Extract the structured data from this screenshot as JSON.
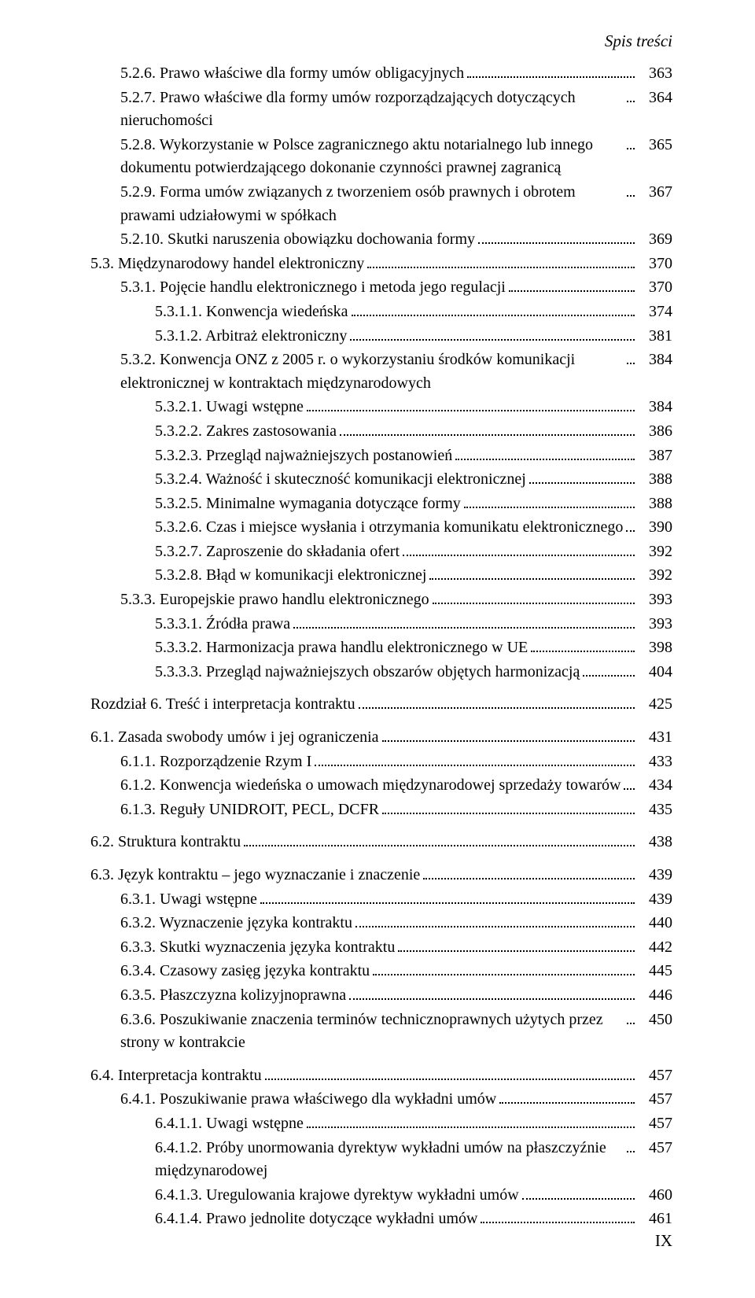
{
  "header": "Spis treści",
  "footer": "IX",
  "lines": [
    {
      "indent": 1,
      "num": "5.2.6.",
      "text": "Prawo właściwe dla formy umów obligacyjnych",
      "page": "363",
      "gap": false
    },
    {
      "indent": 1,
      "num": "5.2.7.",
      "text": "Prawo właściwe dla formy umów rozporządzających dotyczących nieruchomości",
      "page": "364",
      "gap": false
    },
    {
      "indent": 1,
      "num": "5.2.8.",
      "text": "Wykorzystanie w Polsce zagranicznego aktu notarialnego lub innego dokumentu potwierdzającego dokonanie czynności prawnej zagranicą",
      "page": "365",
      "gap": false
    },
    {
      "indent": 1,
      "num": "5.2.9.",
      "text": "Forma umów związanych z tworzeniem osób prawnych i obrotem prawami udziałowymi w spółkach",
      "page": "367",
      "gap": false
    },
    {
      "indent": 1,
      "num": "5.2.10.",
      "text": "Skutki naruszenia obowiązku dochowania formy",
      "page": "369",
      "gap": false
    },
    {
      "indent": 0,
      "num": "5.3.",
      "text": "Międzynarodowy handel elektroniczny",
      "page": "370",
      "gap": false
    },
    {
      "indent": 1,
      "num": "5.3.1.",
      "text": "Pojęcie handlu elektronicznego i metoda jego regulacji",
      "page": "370",
      "gap": false
    },
    {
      "indent": 2,
      "num": "5.3.1.1.",
      "text": "Konwencja wiedeńska",
      "page": "374",
      "gap": false
    },
    {
      "indent": 2,
      "num": "5.3.1.2.",
      "text": "Arbitraż elektroniczny",
      "page": "381",
      "gap": false
    },
    {
      "indent": 1,
      "num": "5.3.2.",
      "text": "Konwencja ONZ z 2005 r. o wykorzystaniu środków komunikacji elektronicznej w kontraktach międzynarodowych",
      "page": "384",
      "gap": false
    },
    {
      "indent": 2,
      "num": "5.3.2.1.",
      "text": "Uwagi wstępne",
      "page": "384",
      "gap": false
    },
    {
      "indent": 2,
      "num": "5.3.2.2.",
      "text": "Zakres zastosowania",
      "page": "386",
      "gap": false
    },
    {
      "indent": 2,
      "num": "5.3.2.3.",
      "text": "Przegląd najważniejszych postanowień",
      "page": "387",
      "gap": false
    },
    {
      "indent": 2,
      "num": "5.3.2.4.",
      "text": "Ważność i skuteczność komunikacji elektronicznej",
      "page": "388",
      "gap": false
    },
    {
      "indent": 2,
      "num": "5.3.2.5.",
      "text": "Minimalne wymagania dotyczące formy",
      "page": "388",
      "gap": false
    },
    {
      "indent": 2,
      "num": "5.3.2.6.",
      "text": "Czas i miejsce wysłania i otrzymania komunikatu elektronicznego",
      "page": "390",
      "gap": false
    },
    {
      "indent": 2,
      "num": "5.3.2.7.",
      "text": "Zaproszenie do składania ofert",
      "page": "392",
      "gap": false
    },
    {
      "indent": 2,
      "num": "5.3.2.8.",
      "text": "Błąd w komunikacji elektronicznej",
      "page": "392",
      "gap": false
    },
    {
      "indent": 1,
      "num": "5.3.3.",
      "text": "Europejskie prawo handlu elektronicznego",
      "page": "393",
      "gap": false
    },
    {
      "indent": 2,
      "num": "5.3.3.1.",
      "text": "Źródła prawa",
      "page": "393",
      "gap": false
    },
    {
      "indent": 2,
      "num": "5.3.3.2.",
      "text": "Harmonizacja prawa handlu elektronicznego w UE",
      "page": "398",
      "gap": false
    },
    {
      "indent": 2,
      "num": "5.3.3.3.",
      "text": "Przegląd najważniejszych obszarów objętych harmonizacją",
      "page": "404",
      "gap": false
    },
    {
      "indent": 0,
      "num": "",
      "text": "Rozdział 6. Treść i interpretacja kontraktu",
      "page": "425",
      "gap": true,
      "noindent": true
    },
    {
      "indent": 0,
      "num": "6.1.",
      "text": "Zasada swobody umów i jej ograniczenia",
      "page": "431",
      "gap": true
    },
    {
      "indent": 1,
      "num": "6.1.1.",
      "text": "Rozporządzenie Rzym I",
      "page": "433",
      "gap": false
    },
    {
      "indent": 1,
      "num": "6.1.2.",
      "text": "Konwencja wiedeńska o umowach międzynarodowej sprzedaży towarów",
      "page": "434",
      "gap": false
    },
    {
      "indent": 1,
      "num": "6.1.3.",
      "text": "Reguły UNIDROIT, PECL, DCFR",
      "page": "435",
      "gap": false
    },
    {
      "indent": 0,
      "num": "6.2.",
      "text": "Struktura kontraktu",
      "page": "438",
      "gap": true
    },
    {
      "indent": 0,
      "num": "6.3.",
      "text": "Język kontraktu – jego wyznaczanie i znaczenie",
      "page": "439",
      "gap": true
    },
    {
      "indent": 1,
      "num": "6.3.1.",
      "text": "Uwagi wstępne",
      "page": "439",
      "gap": false
    },
    {
      "indent": 1,
      "num": "6.3.2.",
      "text": "Wyznaczenie języka kontraktu",
      "page": "440",
      "gap": false
    },
    {
      "indent": 1,
      "num": "6.3.3.",
      "text": "Skutki wyznaczenia języka kontraktu",
      "page": "442",
      "gap": false
    },
    {
      "indent": 1,
      "num": "6.3.4.",
      "text": "Czasowy zasięg języka kontraktu",
      "page": "445",
      "gap": false
    },
    {
      "indent": 1,
      "num": "6.3.5.",
      "text": "Płaszczyzna kolizyjnoprawna",
      "page": "446",
      "gap": false
    },
    {
      "indent": 1,
      "num": "6.3.6.",
      "text": "Poszukiwanie znaczenia terminów technicznoprawnych użytych przez strony w kontrakcie",
      "page": "450",
      "gap": false
    },
    {
      "indent": 0,
      "num": "6.4.",
      "text": "Interpretacja kontraktu",
      "page": "457",
      "gap": true
    },
    {
      "indent": 1,
      "num": "6.4.1.",
      "text": "Poszukiwanie prawa właściwego dla wykładni umów",
      "page": "457",
      "gap": false
    },
    {
      "indent": 2,
      "num": "6.4.1.1.",
      "text": "Uwagi wstępne",
      "page": "457",
      "gap": false
    },
    {
      "indent": 2,
      "num": "6.4.1.2.",
      "text": "Próby unormowania dyrektyw wykładni umów na płaszczyźnie międzynarodowej",
      "page": "457",
      "gap": false
    },
    {
      "indent": 2,
      "num": "6.4.1.3.",
      "text": "Uregulowania krajowe dyrektyw wykładni umów",
      "page": "460",
      "gap": false
    },
    {
      "indent": 2,
      "num": "6.4.1.4.",
      "text": "Prawo jednolite dotyczące wykładni umów",
      "page": "461",
      "gap": false
    }
  ]
}
